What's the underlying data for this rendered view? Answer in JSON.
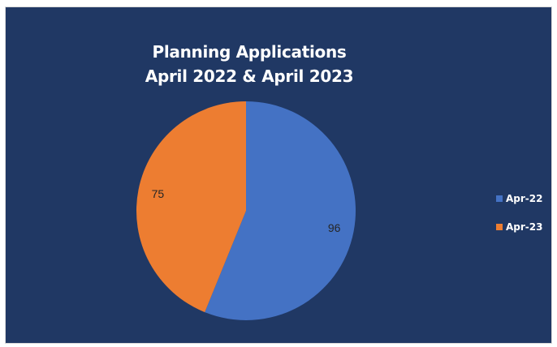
{
  "chart_data": {
    "type": "pie",
    "title_lines": [
      "Planning Applications",
      "April 2022 & April 2023"
    ],
    "categories": [
      "Apr-22",
      "Apr-23"
    ],
    "values": [
      96,
      75
    ],
    "data_labels": [
      "96",
      "75"
    ],
    "colors": [
      "#4472c4",
      "#ed7d31"
    ],
    "background": "#203864",
    "legend_position": "right"
  }
}
